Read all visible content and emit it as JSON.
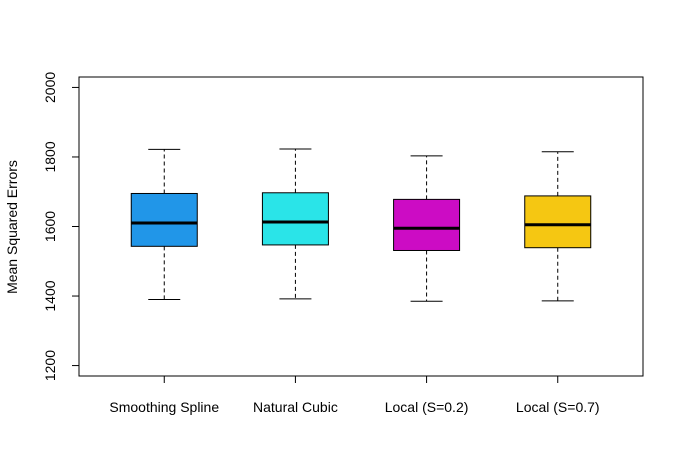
{
  "chart_data": {
    "type": "boxplot",
    "title": "",
    "xlabel": "",
    "ylabel": "Mean Squared Errors",
    "ylim": [
      1170,
      2030
    ],
    "y_ticks": [
      1200,
      1400,
      1600,
      1800,
      2000
    ],
    "y_tick_labels": [
      "1200",
      "1400",
      "1600",
      "1800",
      "2000"
    ],
    "grid": false,
    "legend": "none",
    "categories": [
      "Smoothing Spline",
      "Natural Cubic",
      "Local (S=0.2)",
      "Local (S=0.7)"
    ],
    "boxes": [
      {
        "label": "Smoothing Spline",
        "whisker_low": 1390,
        "q1": 1543,
        "median": 1610,
        "q3": 1695,
        "whisker_high": 1822,
        "color": "#2196e8"
      },
      {
        "label": "Natural Cubic",
        "whisker_low": 1392,
        "q1": 1547,
        "median": 1613,
        "q3": 1697,
        "whisker_high": 1823,
        "color": "#2ae4e8"
      },
      {
        "label": "Local (S=0.2)",
        "whisker_low": 1385,
        "q1": 1531,
        "median": 1595,
        "q3": 1678,
        "whisker_high": 1803,
        "color": "#cc0cc4"
      },
      {
        "label": "Local (S=0.7)",
        "whisker_low": 1386,
        "q1": 1539,
        "median": 1605,
        "q3": 1688,
        "whisker_high": 1815,
        "color": "#f5c712"
      }
    ]
  }
}
